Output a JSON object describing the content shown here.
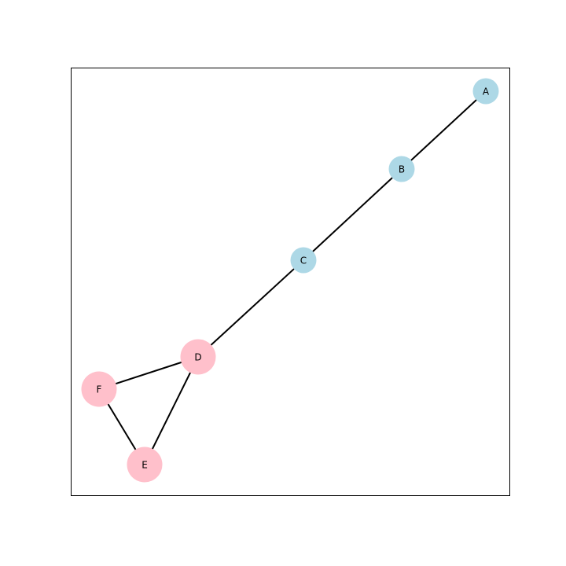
{
  "graph": {
    "nodes": [
      {
        "id": "A",
        "label": "A",
        "color": "#add8e6",
        "size": "small"
      },
      {
        "id": "B",
        "label": "B",
        "color": "#add8e6",
        "size": "small"
      },
      {
        "id": "C",
        "label": "C",
        "color": "#add8e6",
        "size": "small"
      },
      {
        "id": "D",
        "label": "D",
        "color": "#ffc0cb",
        "size": "large"
      },
      {
        "id": "E",
        "label": "E",
        "color": "#ffc0cb",
        "size": "large"
      },
      {
        "id": "F",
        "label": "F",
        "color": "#ffc0cb",
        "size": "large"
      }
    ],
    "edges": [
      {
        "source": "A",
        "target": "B"
      },
      {
        "source": "B",
        "target": "C"
      },
      {
        "source": "C",
        "target": "D"
      },
      {
        "source": "D",
        "target": "E"
      },
      {
        "source": "D",
        "target": "F"
      },
      {
        "source": "E",
        "target": "F"
      }
    ],
    "colors": {
      "group_1": "#add8e6",
      "group_2": "#ffc0cb",
      "edge": "#000000",
      "frame": "#000000"
    }
  }
}
